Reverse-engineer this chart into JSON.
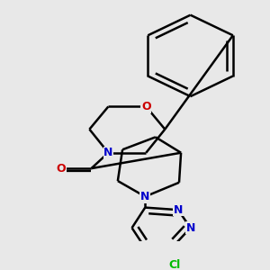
{
  "bg_color": "#e8e8e8",
  "atom_colors": {
    "N": "#0000cc",
    "O": "#cc0000",
    "Cl": "#00bb00"
  },
  "bond_color": "#000000",
  "bond_width": 1.8,
  "font_size_atom": 9
}
